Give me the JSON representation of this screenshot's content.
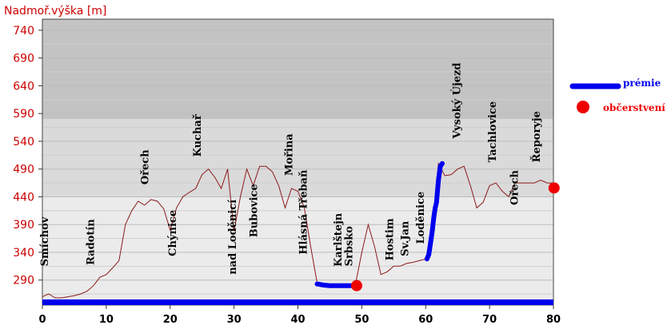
{
  "chart_data": {
    "type": "line",
    "ylabel": "Nadmoř.výška [m]",
    "xlim": [
      0,
      80
    ],
    "ylim": [
      245,
      760
    ],
    "xticks": [
      0,
      10,
      20,
      30,
      40,
      50,
      60,
      70,
      80
    ],
    "yticks": [
      290,
      340,
      390,
      440,
      490,
      540,
      590,
      640,
      690,
      740
    ],
    "grid": true,
    "legend_position": "right",
    "colors": {
      "profile": "#8b1a1a",
      "premie": "#0000ee",
      "premie_label": "#0000ee",
      "refreshment": "#ee0000",
      "refreshment_label": "#ee0000",
      "ytick": "#cc0000",
      "bottom_bar": "#0000ee"
    },
    "bands": [
      {
        "from": 245,
        "to": 440,
        "color": "#ebebeb"
      },
      {
        "from": 440,
        "to": 580,
        "color": "#dadada"
      },
      {
        "from": 580,
        "to": 760,
        "color": "#c3c3c3"
      }
    ],
    "series": [
      {
        "kind": "profile",
        "x": [
          0,
          1,
          2,
          3,
          4,
          5,
          6,
          7,
          8,
          9,
          10,
          11,
          12,
          13,
          14,
          15,
          16,
          17,
          18,
          19,
          20,
          21,
          22,
          23,
          24,
          25,
          26,
          27,
          28,
          29,
          30,
          31,
          32,
          33,
          34,
          35,
          36,
          37,
          38,
          39,
          40,
          41,
          42,
          43,
          44,
          45,
          46,
          47,
          48,
          49,
          50,
          51,
          52,
          53,
          54,
          55,
          56,
          57,
          58,
          59,
          60,
          61,
          62,
          63,
          64,
          65,
          66,
          67,
          68,
          69,
          70,
          71,
          72,
          73,
          74,
          75,
          76,
          77,
          78,
          79,
          80
        ],
        "y": [
          260,
          265,
          258,
          258,
          260,
          262,
          265,
          270,
          280,
          295,
          300,
          312,
          325,
          390,
          415,
          432,
          425,
          435,
          432,
          418,
          380,
          420,
          440,
          448,
          455,
          480,
          490,
          475,
          455,
          490,
          378,
          440,
          490,
          460,
          495,
          495,
          485,
          460,
          420,
          455,
          450,
          420,
          350,
          285,
          282,
          282,
          282,
          282,
          282,
          282,
          340,
          390,
          350,
          300,
          305,
          315,
          315,
          320,
          322,
          325,
          328,
          380,
          500,
          478,
          480,
          490,
          495,
          460,
          420,
          430,
          460,
          465,
          450,
          440,
          465,
          465,
          465,
          465,
          470,
          465,
          465
        ]
      },
      {
        "kind": "premie",
        "x": [
          43,
          44,
          45,
          46,
          47,
          48,
          49
        ],
        "y": [
          283,
          281,
          280,
          280,
          280,
          280,
          280
        ]
      },
      {
        "kind": "premie",
        "x": [
          60.2,
          60.5,
          61,
          61.3,
          61.5,
          61.7,
          62,
          62.3,
          62.6
        ],
        "y": [
          328,
          336,
          375,
          405,
          420,
          430,
          470,
          495,
          500
        ]
      }
    ],
    "points": [
      {
        "kind": "refreshment",
        "x": 49.2,
        "y": 280
      },
      {
        "kind": "refreshment",
        "x": 80.1,
        "y": 456
      }
    ],
    "annotations": [
      {
        "text": "Smíchov",
        "x": 0.9,
        "y": 315
      },
      {
        "text": "Radotín",
        "x": 8.1,
        "y": 317
      },
      {
        "text": "Ořech",
        "x": 16.6,
        "y": 462
      },
      {
        "text": "Chýnice",
        "x": 20.9,
        "y": 333
      },
      {
        "text": "Kuchař",
        "x": 24.8,
        "y": 512
      },
      {
        "text": "nad Loděnicí",
        "x": 30.3,
        "y": 300
      },
      {
        "text": "Bubovice",
        "x": 33.6,
        "y": 367
      },
      {
        "text": "Mořina",
        "x": 39.1,
        "y": 478
      },
      {
        "text": "Hlásná Třebaň",
        "x": 41.4,
        "y": 336
      },
      {
        "text": "Karlštejn",
        "x": 46.8,
        "y": 314
      },
      {
        "text": "Srbsko",
        "x": 48.5,
        "y": 315
      },
      {
        "text": "Hostim",
        "x": 54.9,
        "y": 325
      },
      {
        "text": "Sv.Jan",
        "x": 57.3,
        "y": 333
      },
      {
        "text": "Loděnice",
        "x": 59.7,
        "y": 355
      },
      {
        "text": "Vysoký Újezd",
        "x": 65.4,
        "y": 545
      },
      {
        "text": "Tachlovice",
        "x": 71.0,
        "y": 502
      },
      {
        "text": "Ořech",
        "x": 74.4,
        "y": 425
      },
      {
        "text": "Řeporyje",
        "x": 77.9,
        "y": 502
      }
    ],
    "legend": [
      {
        "kind": "premie",
        "label": "prémie"
      },
      {
        "kind": "refreshment",
        "label": "občerstvení"
      }
    ]
  }
}
